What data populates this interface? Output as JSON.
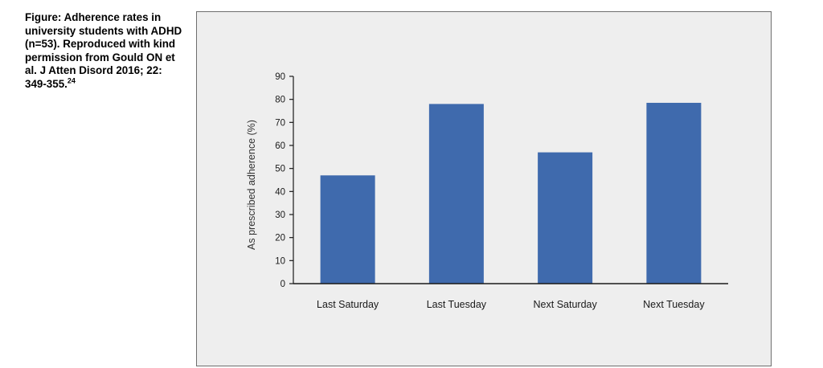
{
  "figure": {
    "caption": "Figure: Adherence rates in university students with ADHD (n=53). Reproduced with kind permission from Gould ON et al. J Atten Disord 2016; 22: 349-355.",
    "caption_superscript": "24"
  },
  "colors": {
    "bar": "#3f6aad",
    "axis": "#1a1a1a",
    "panel_background": "#eeeeee",
    "panel_border": "#6e6e6e"
  },
  "chart_data": {
    "type": "bar",
    "title": "",
    "xlabel": "",
    "ylabel": "As prescribed adherence (%)",
    "categories": [
      "Last Saturday",
      "Last Tuesday",
      "Next Saturday",
      "Next Tuesday"
    ],
    "values": [
      47,
      78,
      57,
      78.5
    ],
    "ylim": [
      0,
      90
    ],
    "yticks": [
      0,
      10,
      20,
      30,
      40,
      50,
      60,
      70,
      80,
      90
    ],
    "grid": false,
    "legend": "none"
  }
}
